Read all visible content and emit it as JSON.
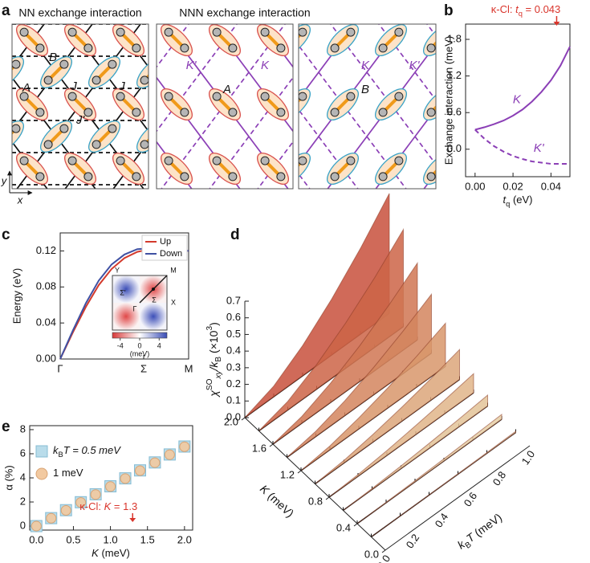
{
  "figure_a": {
    "panel_label": "a",
    "titles": [
      "NN exchange interaction",
      "NNN exchange interaction"
    ],
    "labels": [
      "B",
      "A",
      "J",
      "J",
      "J'",
      "K'",
      "K",
      "A",
      "K",
      "K'",
      "B"
    ],
    "axes": [
      "y",
      "x"
    ]
  },
  "chart_data": [
    {
      "panel_label": "b",
      "type": "line",
      "x": [
        0,
        0.005,
        0.01,
        0.015,
        0.02,
        0.025,
        0.03,
        0.035,
        0.04,
        0.045,
        0.05
      ],
      "series": [
        {
          "name": "K",
          "color": "#8b3fb6",
          "dash": false,
          "values": [
            0.32,
            0.36,
            0.41,
            0.47,
            0.55,
            0.65,
            0.78,
            0.94,
            1.13,
            1.37,
            1.68
          ]
        },
        {
          "name": "K'",
          "color": "#8b3fb6",
          "dash": true,
          "values": [
            0.32,
            0.17,
            0.05,
            -0.04,
            -0.11,
            -0.16,
            -0.2,
            -0.22,
            -0.24,
            -0.24,
            -0.24
          ]
        }
      ],
      "xlabel_parts": [
        "t",
        "q",
        " (eV)"
      ],
      "ylabel": "Exchange interaction (meV)",
      "xlim": [
        -0.005,
        0.05
      ],
      "ylim": [
        -0.45,
        2.05
      ],
      "xticks": [
        {
          "value": 0,
          "label": "0.00"
        },
        {
          "value": 0.02,
          "label": "0.02"
        },
        {
          "value": 0.04,
          "label": "0.04"
        }
      ],
      "yticks": [
        {
          "value": 0,
          "label": "0.0"
        },
        0.6,
        1.2,
        1.8
      ],
      "annotation": {
        "parts": [
          "κ-Cl: ",
          "t",
          "q",
          " = 0.043"
        ],
        "x": 0.043,
        "color": "#d9342b"
      }
    },
    {
      "panel_label": "c",
      "type": "line",
      "x": [
        0,
        0.1,
        0.2,
        0.3,
        0.4,
        0.5,
        0.6,
        0.7,
        0.8,
        0.9,
        1.0
      ],
      "series": [
        {
          "name": "Up",
          "color": "#d33a2c",
          "values": [
            0,
            0.03,
            0.058,
            0.082,
            0.1,
            0.112,
            0.119,
            0.122,
            0.122,
            0.121,
            0.12
          ]
        },
        {
          "name": "Down",
          "color": "#3f51a3",
          "values": [
            0,
            0.032,
            0.062,
            0.087,
            0.105,
            0.116,
            0.122,
            0.123,
            0.122,
            0.121,
            0.12
          ]
        }
      ],
      "ylabel": "Energy (eV)",
      "xlim": [
        0,
        1
      ],
      "ylim": [
        0,
        0.14
      ],
      "xticks": [
        {
          "value": 0,
          "label": "Γ"
        },
        {
          "value": 0.65,
          "label": "Σ"
        },
        {
          "value": 1,
          "label": "M"
        }
      ],
      "yticks": [
        {
          "value": 0,
          "label": "0.00"
        },
        {
          "value": 0.04,
          "label": "0.04"
        },
        {
          "value": 0.08,
          "label": "0.08"
        },
        {
          "value": 0.12,
          "label": "0.12"
        }
      ],
      "legend": "upper right",
      "inset": {
        "labels": [
          "Y",
          "M",
          "Σ'",
          "Σ",
          "Γ",
          "X"
        ],
        "colorbar_lim": [
          -5.6,
          5.6
        ],
        "colorbar_ticks": [
          -4,
          0,
          4
        ],
        "colorbar_label": "(meV)"
      }
    },
    {
      "panel_label": "d",
      "type": "waterfall3d",
      "x": [
        0,
        0.2,
        0.4,
        0.6,
        0.8,
        1.0
      ],
      "z": [
        2.0,
        1.8,
        1.6,
        1.4,
        1.2,
        1.0,
        0.8,
        0.6,
        0.4,
        0.2
      ],
      "series": [
        {
          "color": "#c8503c",
          "values": [
            0,
            0.064,
            0.182,
            0.335,
            0.515,
            0.72
          ]
        },
        {
          "color": "#cc6446",
          "values": [
            0,
            0.052,
            0.148,
            0.271,
            0.417,
            0.583
          ]
        },
        {
          "color": "#d07552",
          "values": [
            0,
            0.041,
            0.117,
            0.214,
            0.33,
            0.461
          ]
        },
        {
          "color": "#d4855e",
          "values": [
            0,
            0.032,
            0.089,
            0.164,
            0.253,
            0.353
          ]
        },
        {
          "color": "#d8966b",
          "values": [
            0,
            0.023,
            0.066,
            0.12,
            0.185,
            0.259
          ]
        },
        {
          "color": "#dca67a",
          "values": [
            0,
            0.016,
            0.046,
            0.084,
            0.129,
            0.18
          ]
        },
        {
          "color": "#e0b589",
          "values": [
            0,
            0.01,
            0.029,
            0.054,
            0.082,
            0.115
          ]
        },
        {
          "color": "#e3c398",
          "values": [
            0,
            0.006,
            0.016,
            0.03,
            0.046,
            0.065
          ]
        },
        {
          "color": "#e6cfa6",
          "values": [
            0,
            0.003,
            0.007,
            0.013,
            0.021,
            0.029
          ]
        },
        {
          "color": "#e9d9b4",
          "values": [
            0,
            0.001,
            0.002,
            0.003,
            0.005,
            0.007
          ]
        }
      ],
      "ylabel_parts": [
        "χ",
        "SO",
        "xy",
        "/k",
        "B",
        " (×10",
        "3",
        ")"
      ],
      "xlabel_parts": [
        "k",
        "B",
        "T",
        " (meV)"
      ],
      "zlabel_parts": [
        "K",
        " (meV)"
      ],
      "xlim": [
        0,
        1
      ],
      "ylim": [
        0,
        0.7
      ],
      "zlim": [
        0,
        2
      ],
      "xticks": [
        {
          "value": 0,
          "label": "0.0"
        },
        0.2,
        0.4,
        0.6,
        0.8,
        {
          "value": 1,
          "label": "1.0"
        }
      ],
      "yticks": [
        {
          "value": 0,
          "label": "0.0"
        },
        0.1,
        0.2,
        0.3,
        0.4,
        0.5,
        0.6,
        0.7
      ],
      "zticks": [
        {
          "value": 0,
          "label": "0.0"
        },
        0.4,
        0.8,
        1.2,
        1.6,
        {
          "value": 2,
          "label": "2.0"
        }
      ]
    },
    {
      "panel_label": "e",
      "type": "scatter",
      "x": [
        0,
        0.2,
        0.4,
        0.6,
        0.8,
        1.0,
        1.2,
        1.4,
        1.6,
        1.8,
        2.0
      ],
      "series": [
        {
          "name_parts": [
            "k",
            "B",
            "T = 0.5 meV"
          ],
          "marker": "square",
          "color": "#b9dcea",
          "edge": "#86bcd3",
          "values": [
            0,
            0.66,
            1.32,
            1.98,
            2.64,
            3.3,
            3.96,
            4.62,
            5.28,
            5.94,
            6.6
          ]
        },
        {
          "name_parts": [
            "1 meV"
          ],
          "marker": "circle",
          "color": "#f2c9a0",
          "edge": "#d9a475",
          "values": [
            0,
            0.65,
            1.3,
            1.96,
            2.62,
            3.28,
            3.94,
            4.6,
            5.26,
            5.92,
            6.58
          ]
        }
      ],
      "xlabel_parts": [
        "K",
        " (meV)"
      ],
      "ylabel": "α (%)",
      "xlim": [
        -0.09,
        2.11
      ],
      "ylim": [
        -0.33,
        8.33
      ],
      "xticks": [
        {
          "value": 0,
          "label": "0.0"
        },
        0.5,
        {
          "value": 1,
          "label": "1.0"
        },
        1.5,
        {
          "value": 2,
          "label": "2.0"
        }
      ],
      "yticks": [
        0,
        2,
        4,
        6,
        8
      ],
      "legend": "upper left",
      "annotation": {
        "parts": [
          "κ-Cl: ",
          "K",
          " = 1.3"
        ],
        "x": 1.3,
        "color": "#d9342b"
      }
    }
  ]
}
